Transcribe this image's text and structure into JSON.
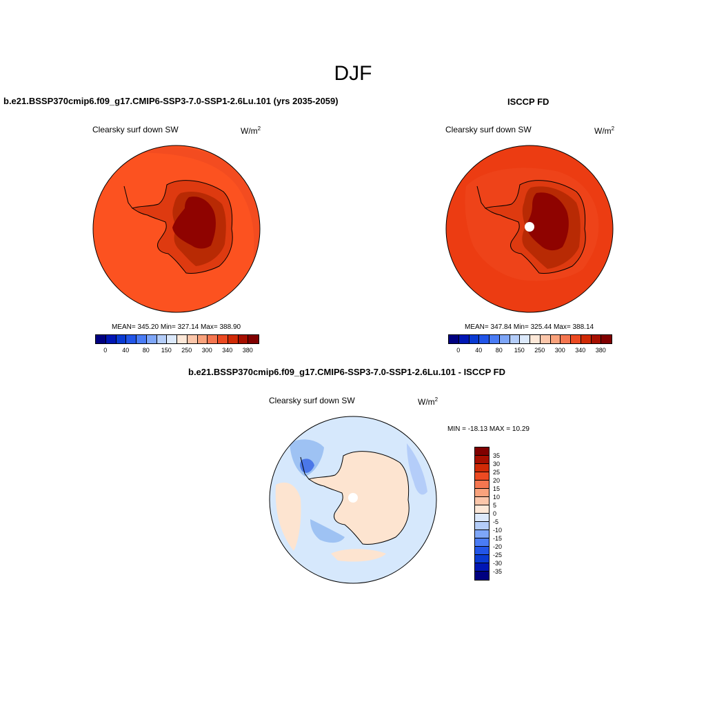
{
  "page_title": "DJF",
  "panel_left": {
    "case": "b.e21.BSSP370cmip6.f09_g17.CMIP6-SSP3-7.0-SSP1-2.6Lu.101 (yrs 2035-2059)",
    "variable": "Clearsky surf down SW",
    "units": "W/m",
    "units_sup": "2",
    "stats": "MEAN= 345.20  Min= 327.14  Max= 388.90"
  },
  "panel_right": {
    "case": "ISCCP FD",
    "variable": "Clearsky surf down SW",
    "units": "W/m",
    "units_sup": "2",
    "stats": "MEAN= 347.84  Min= 325.44  Max= 388.14"
  },
  "panel_diff": {
    "case": "b.e21.BSSP370cmip6.f09_g17.CMIP6-SSP3-7.0-SSP1-2.6Lu.101 - ISCCP FD",
    "variable": "Clearsky surf down SW",
    "units": "W/m",
    "units_sup": "2",
    "minmax": "MIN = -18.13 MAX =  10.29"
  },
  "field_colorbar": {
    "colors": [
      "#000080",
      "#0016b4",
      "#0a3ad2",
      "#2255e8",
      "#4a7cf5",
      "#7ea6f8",
      "#b4cdf9",
      "#dce9fb",
      "#fde8d8",
      "#fbc6aa",
      "#f9a27c",
      "#f57650",
      "#ec4a22",
      "#d02a06",
      "#a60f00",
      "#800000"
    ],
    "tick_labels": [
      "0",
      "40",
      "80",
      "150",
      "250",
      "300",
      "340",
      "380"
    ]
  },
  "diff_colorbar": {
    "colors_top_to_bottom": [
      "#800000",
      "#a60f00",
      "#d02a06",
      "#ec4a22",
      "#f57650",
      "#f9a27c",
      "#fbc6aa",
      "#fde8d8",
      "#dce9fb",
      "#b4cdf9",
      "#7ea6f8",
      "#4a7cf5",
      "#2255e8",
      "#0a3ad2",
      "#0016b4",
      "#000080"
    ],
    "tick_labels": [
      "35",
      "30",
      "25",
      "20",
      "15",
      "10",
      "5",
      "0",
      "-5",
      "-10",
      "-15",
      "-20",
      "-25",
      "-30",
      "-35"
    ]
  },
  "colors": {
    "ocean_left": "#fc5220",
    "ocean_right": "#ec3c12",
    "land_level1": "#de3a10",
    "land_level2": "#b82a04",
    "land_level3": "#8f0300",
    "diff_ocean": "#d6e8fc",
    "diff_warm": "#fde4d0",
    "diff_cool": "#9ec2f3",
    "diff_blue": "#4b77e8"
  }
}
